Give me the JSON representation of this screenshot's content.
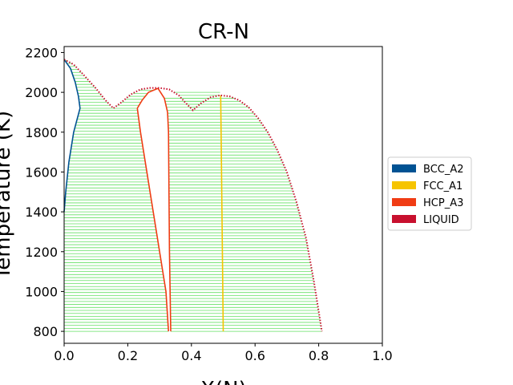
{
  "chart_data": {
    "type": "line",
    "title": "CR-N",
    "xlabel": "X(N)",
    "ylabel": "Temperature (K)",
    "xlim": [
      0.0,
      1.0
    ],
    "ylim": [
      740,
      2230
    ],
    "xticks": [
      0.0,
      0.2,
      0.4,
      0.6,
      0.8,
      1.0
    ],
    "xtick_labels": [
      "0.0",
      "0.2",
      "0.4",
      "0.6",
      "0.8",
      "1.0"
    ],
    "yticks": [
      800,
      1000,
      1200,
      1400,
      1600,
      1800,
      2000,
      2200
    ],
    "ytick_labels": [
      "800",
      "1000",
      "1200",
      "1400",
      "1600",
      "1800",
      "2000",
      "2200"
    ],
    "legend_position": "right",
    "legend": [
      {
        "label": "BCC_A2",
        "color": "#005293"
      },
      {
        "label": "FCC_A1",
        "color": "#f6c400"
      },
      {
        "label": "HCP_A3",
        "color": "#f03c14"
      },
      {
        "label": "LIQUID",
        "color": "#c8102e"
      }
    ],
    "tie_line_color": "#66e066",
    "series": [
      {
        "name": "BCC_A2",
        "color": "#005293",
        "style": "solid",
        "segments": [
          [
            [
              0.0,
              1400
            ],
            [
              0.005,
              1500
            ],
            [
              0.015,
              1650
            ],
            [
              0.03,
              1800
            ],
            [
              0.05,
              1920
            ]
          ],
          [
            [
              0.0,
              2165
            ],
            [
              0.02,
              2120
            ],
            [
              0.035,
              2050
            ],
            [
              0.045,
              1980
            ],
            [
              0.05,
              1920
            ]
          ]
        ]
      },
      {
        "name": "FCC_A1",
        "color": "#f6c400",
        "style": "solid",
        "segments": [
          [
            [
              0.492,
              1985
            ],
            [
              0.494,
              1700
            ],
            [
              0.496,
              1400
            ],
            [
              0.498,
              1100
            ],
            [
              0.5,
              800
            ]
          ]
        ]
      },
      {
        "name": "HCP_A3",
        "color": "#f03c14",
        "style": "solid",
        "segments": [
          [
            [
              0.23,
              1920
            ],
            [
              0.24,
              1800
            ],
            [
              0.26,
              1600
            ],
            [
              0.28,
              1400
            ],
            [
              0.3,
              1200
            ],
            [
              0.32,
              1000
            ],
            [
              0.328,
              800
            ]
          ],
          [
            [
              0.335,
              800
            ],
            [
              0.333,
              1000
            ],
            [
              0.331,
              1200
            ],
            [
              0.33,
              1400
            ],
            [
              0.329,
              1600
            ],
            [
              0.328,
              1800
            ],
            [
              0.325,
              1900
            ],
            [
              0.315,
              1970
            ],
            [
              0.295,
              2020
            ]
          ],
          [
            [
              0.23,
              1920
            ],
            [
              0.245,
              1960
            ],
            [
              0.265,
              2000
            ],
            [
              0.295,
              2020
            ]
          ]
        ]
      },
      {
        "name": "LIQUID",
        "color": "#c8102e",
        "style": "dotted",
        "segments": [
          [
            [
              0.0,
              2165
            ],
            [
              0.03,
              2140
            ],
            [
              0.06,
              2090
            ],
            [
              0.1,
              2020
            ],
            [
              0.13,
              1960
            ],
            [
              0.155,
              1920
            ],
            [
              0.18,
              1950
            ],
            [
              0.21,
              1990
            ],
            [
              0.24,
              2015
            ],
            [
              0.27,
              2022
            ],
            [
              0.3,
              2022
            ],
            [
              0.33,
              2015
            ],
            [
              0.36,
              1985
            ],
            [
              0.38,
              1950
            ],
            [
              0.405,
              1910
            ],
            [
              0.43,
              1945
            ],
            [
              0.46,
              1975
            ],
            [
              0.49,
              1985
            ],
            [
              0.52,
              1980
            ],
            [
              0.55,
              1960
            ],
            [
              0.58,
              1925
            ],
            [
              0.61,
              1870
            ],
            [
              0.64,
              1800
            ],
            [
              0.67,
              1710
            ],
            [
              0.7,
              1600
            ],
            [
              0.73,
              1450
            ],
            [
              0.76,
              1270
            ],
            [
              0.785,
              1050
            ],
            [
              0.8,
              900
            ],
            [
              0.81,
              800
            ]
          ]
        ]
      }
    ],
    "tie_line_step": 15,
    "tie_line_regions": [
      {
        "t": [
          800,
          1920
        ],
        "left": [
          [
            800,
            0.0
          ],
          [
            1400,
            0.0
          ],
          [
            1500,
            0.005
          ],
          [
            1650,
            0.015
          ],
          [
            1800,
            0.03
          ],
          [
            1920,
            0.05
          ]
        ],
        "right": [
          [
            800,
            0.328
          ],
          [
            1000,
            0.32
          ],
          [
            1200,
            0.3
          ],
          [
            1400,
            0.28
          ],
          [
            1600,
            0.26
          ],
          [
            1800,
            0.24
          ],
          [
            1920,
            0.23
          ]
        ]
      },
      {
        "t": [
          1920,
          2160
        ],
        "left": [
          [
            1920,
            0.05
          ],
          [
            1980,
            0.045
          ],
          [
            2050,
            0.035
          ],
          [
            2120,
            0.02
          ],
          [
            2160,
            0.005
          ]
        ],
        "right": [
          [
            1920,
            0.155
          ],
          [
            1960,
            0.13
          ],
          [
            2020,
            0.1
          ],
          [
            2090,
            0.06
          ],
          [
            2140,
            0.03
          ],
          [
            2160,
            0.01
          ]
        ]
      },
      {
        "t": [
          1920,
          2018
        ],
        "left": [
          [
            1920,
            0.23
          ],
          [
            1960,
            0.245
          ],
          [
            2000,
            0.265
          ],
          [
            2018,
            0.29
          ]
        ],
        "right": [
          [
            1920,
            0.155
          ],
          [
            1950,
            0.18
          ],
          [
            1990,
            0.21
          ],
          [
            2015,
            0.24
          ],
          [
            2018,
            0.26
          ]
        ]
      },
      {
        "t": [
          800,
          1980
        ],
        "left": [
          [
            800,
            0.335
          ],
          [
            1000,
            0.333
          ],
          [
            1200,
            0.331
          ],
          [
            1400,
            0.33
          ],
          [
            1600,
            0.329
          ],
          [
            1800,
            0.328
          ],
          [
            1900,
            0.325
          ],
          [
            1970,
            0.315
          ],
          [
            1980,
            0.31
          ]
        ],
        "right": [
          [
            800,
            0.5
          ],
          [
            1100,
            0.498
          ],
          [
            1400,
            0.496
          ],
          [
            1700,
            0.494
          ],
          [
            1980,
            0.492
          ]
        ]
      },
      {
        "t": [
          1910,
          2010
        ],
        "left": [
          [
            1910,
            0.405
          ],
          [
            1950,
            0.38
          ],
          [
            1985,
            0.36
          ],
          [
            2010,
            0.335
          ]
        ],
        "right": [
          [
            1910,
            0.405
          ],
          [
            1945,
            0.43
          ],
          [
            1975,
            0.46
          ],
          [
            1985,
            0.49
          ]
        ]
      },
      {
        "t": [
          800,
          1980
        ],
        "left": [
          [
            800,
            0.5
          ],
          [
            1100,
            0.498
          ],
          [
            1400,
            0.496
          ],
          [
            1700,
            0.494
          ],
          [
            1980,
            0.492
          ]
        ],
        "right": [
          [
            800,
            0.81
          ],
          [
            900,
            0.8
          ],
          [
            1050,
            0.785
          ],
          [
            1270,
            0.76
          ],
          [
            1450,
            0.73
          ],
          [
            1600,
            0.7
          ],
          [
            1710,
            0.67
          ],
          [
            1800,
            0.64
          ],
          [
            1870,
            0.61
          ],
          [
            1925,
            0.58
          ],
          [
            1960,
            0.55
          ],
          [
            1980,
            0.52
          ]
        ]
      }
    ]
  }
}
